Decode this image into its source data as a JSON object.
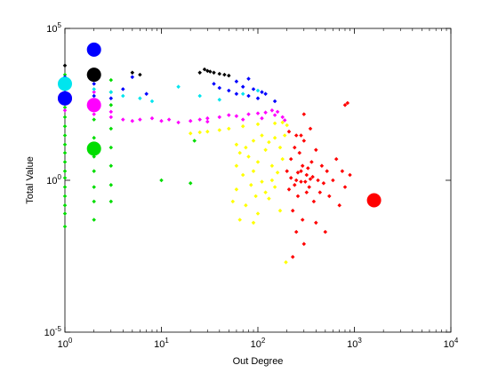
{
  "chart_data": {
    "type": "scatter",
    "title": "",
    "xlabel": "Out Degree",
    "ylabel": "Total Value",
    "xscale": "log",
    "yscale": "log",
    "xlim": [
      1,
      10000
    ],
    "ylim": [
      1e-05,
      100000
    ],
    "grid": false,
    "legend": "none",
    "x_ticks": [
      {
        "value": 1,
        "base": "10",
        "exp": "0"
      },
      {
        "value": 10,
        "base": "10",
        "exp": "1"
      },
      {
        "value": 100,
        "base": "10",
        "exp": "2"
      },
      {
        "value": 1000,
        "base": "10",
        "exp": "3"
      },
      {
        "value": 10000,
        "base": "10",
        "exp": "4"
      }
    ],
    "y_ticks": [
      {
        "value": 1e-05,
        "base": "10",
        "exp": "-5"
      },
      {
        "value": 1,
        "base": "10",
        "exp": "0"
      },
      {
        "value": 100000,
        "base": "10",
        "exp": "5"
      }
    ],
    "series": [
      {
        "color": "#00dd00",
        "points": [
          [
            1,
            0.03
          ],
          [
            1,
            0.08
          ],
          [
            1,
            0.15
          ],
          [
            1,
            0.3
          ],
          [
            1,
            0.6
          ],
          [
            1,
            1.2
          ],
          [
            1,
            2
          ],
          [
            1,
            4
          ],
          [
            1,
            8
          ],
          [
            1,
            15
          ],
          [
            1,
            30
          ],
          [
            1,
            60
          ],
          [
            1,
            120
          ],
          [
            1,
            250
          ],
          [
            1,
            500
          ],
          [
            1,
            1000
          ],
          [
            1,
            1500
          ],
          [
            1,
            3000
          ],
          [
            2,
            0.05
          ],
          [
            2,
            0.2
          ],
          [
            2,
            0.6
          ],
          [
            2,
            2
          ],
          [
            2,
            6
          ],
          [
            2,
            25
          ],
          [
            2,
            100
          ],
          [
            2,
            400
          ],
          [
            3,
            0.2
          ],
          [
            3,
            0.7
          ],
          [
            3,
            3
          ],
          [
            3,
            12
          ],
          [
            3,
            50
          ],
          [
            3,
            300
          ],
          [
            3,
            800
          ],
          [
            3,
            2000
          ],
          [
            10,
            1
          ],
          [
            20,
            0.8
          ],
          [
            22,
            20
          ]
        ],
        "large_markers": [
          [
            2,
            11
          ]
        ]
      },
      {
        "color": "#ffff00",
        "points": [
          [
            55,
            0.2
          ],
          [
            60,
            3
          ],
          [
            60,
            0.5
          ],
          [
            65,
            8
          ],
          [
            70,
            1.5
          ],
          [
            75,
            0.15
          ],
          [
            80,
            6
          ],
          [
            85,
            0.7
          ],
          [
            90,
            2
          ],
          [
            95,
            0.3
          ],
          [
            100,
            4
          ],
          [
            110,
            0.9
          ],
          [
            120,
            10
          ],
          [
            130,
            0.25
          ],
          [
            140,
            3
          ],
          [
            150,
            0.6
          ],
          [
            160,
            1.8
          ],
          [
            170,
            0.1
          ],
          [
            180,
            5
          ],
          [
            195,
            0.002
          ],
          [
            60,
            15
          ],
          [
            75,
            12
          ],
          [
            90,
            20
          ],
          [
            110,
            30
          ],
          [
            130,
            18
          ],
          [
            150,
            25
          ],
          [
            20,
            35
          ],
          [
            25,
            38
          ],
          [
            30,
            40
          ],
          [
            40,
            45
          ],
          [
            50,
            50
          ],
          [
            70,
            60
          ],
          [
            100,
            70
          ],
          [
            150,
            75
          ],
          [
            180,
            80
          ],
          [
            200,
            65
          ],
          [
            190,
            30
          ],
          [
            170,
            12
          ],
          [
            140,
            1
          ],
          [
            120,
            0.4
          ],
          [
            100,
            0.08
          ],
          [
            65,
            0.05
          ],
          [
            90,
            0.04
          ]
        ],
        "large_markers": []
      },
      {
        "color": "#ff00ff",
        "points": [
          [
            1,
            200
          ],
          [
            1,
            500
          ],
          [
            2,
            150
          ],
          [
            2,
            300
          ],
          [
            3,
            120
          ],
          [
            4,
            100
          ],
          [
            5,
            90
          ],
          [
            6,
            100
          ],
          [
            8,
            110
          ],
          [
            10,
            90
          ],
          [
            12,
            100
          ],
          [
            15,
            80
          ],
          [
            20,
            90
          ],
          [
            25,
            100
          ],
          [
            30,
            110
          ],
          [
            40,
            120
          ],
          [
            50,
            140
          ],
          [
            60,
            130
          ],
          [
            80,
            150
          ],
          [
            100,
            160
          ],
          [
            120,
            170
          ],
          [
            140,
            200
          ],
          [
            160,
            180
          ],
          [
            180,
            120
          ],
          [
            190,
            95
          ],
          [
            30,
            85
          ],
          [
            70,
            100
          ],
          [
            110,
            110
          ],
          [
            150,
            140
          ],
          [
            3,
            180
          ],
          [
            2,
            800
          ],
          [
            1,
            1000
          ]
        ],
        "large_markers": [
          [
            1,
            500
          ],
          [
            2,
            300
          ]
        ]
      },
      {
        "color": "#ff0000",
        "points": [
          [
            200,
            2
          ],
          [
            210,
            0.5
          ],
          [
            220,
            5
          ],
          [
            230,
            0.1
          ],
          [
            240,
            12
          ],
          [
            250,
            1
          ],
          [
            260,
            0.3
          ],
          [
            270,
            8
          ],
          [
            280,
            2
          ],
          [
            290,
            0.05
          ],
          [
            300,
            20
          ],
          [
            320,
            1.5
          ],
          [
            340,
            0.6
          ],
          [
            360,
            4
          ],
          [
            380,
            0.2
          ],
          [
            400,
            10
          ],
          [
            420,
            1
          ],
          [
            440,
            0.4
          ],
          [
            460,
            3
          ],
          [
            480,
            0.8
          ],
          [
            500,
            0.02
          ],
          [
            520,
            2
          ],
          [
            550,
            0.3
          ],
          [
            600,
            1
          ],
          [
            650,
            5
          ],
          [
            700,
            0.15
          ],
          [
            750,
            2
          ],
          [
            800,
            0.6
          ],
          [
            900,
            1.5
          ],
          [
            210,
            40
          ],
          [
            250,
            30
          ],
          [
            280,
            30
          ],
          [
            300,
            150
          ],
          [
            350,
            50
          ],
          [
            800,
            300
          ],
          [
            850,
            350
          ],
          [
            230,
            0.003
          ],
          [
            300,
            0.008
          ],
          [
            250,
            0.02
          ],
          [
            400,
            0.04
          ],
          [
            220,
            1.2
          ],
          [
            260,
            1.8
          ],
          [
            310,
            0.9
          ],
          [
            330,
            2.5
          ],
          [
            370,
            1.3
          ],
          [
            240,
            0.7
          ],
          [
            280,
            0.9
          ],
          [
            350,
            1.1
          ],
          [
            290,
            3
          ],
          [
            320,
            0.4
          ]
        ],
        "large_markers": [
          [
            1600,
            0.22
          ]
        ]
      },
      {
        "color": "#00e5ee",
        "points": [
          [
            1,
            1000
          ],
          [
            1,
            2000
          ],
          [
            2,
            1000
          ],
          [
            3,
            800
          ],
          [
            4,
            600
          ],
          [
            6,
            500
          ],
          [
            8,
            400
          ],
          [
            15,
            1200
          ],
          [
            25,
            600
          ],
          [
            40,
            450
          ],
          [
            70,
            700
          ],
          [
            100,
            900
          ]
        ],
        "large_markers": [
          [
            1,
            1500
          ]
        ]
      },
      {
        "color": "#0000ff",
        "points": [
          [
            1,
            2500
          ],
          [
            1,
            800
          ],
          [
            2,
            600
          ],
          [
            2,
            1500
          ],
          [
            3,
            500
          ],
          [
            4,
            1000
          ],
          [
            5,
            2500
          ],
          [
            7,
            700
          ],
          [
            35,
            1500
          ],
          [
            40,
            1100
          ],
          [
            50,
            900
          ],
          [
            60,
            700
          ],
          [
            70,
            1200
          ],
          [
            80,
            600
          ],
          [
            90,
            1000
          ],
          [
            100,
            500
          ],
          [
            110,
            800
          ],
          [
            120,
            700
          ],
          [
            150,
            400
          ],
          [
            60,
            1800
          ],
          [
            80,
            2200
          ]
        ],
        "large_markers": [
          [
            1,
            500
          ],
          [
            2,
            20000
          ]
        ]
      },
      {
        "color": "#000000",
        "points": [
          [
            1,
            6000
          ],
          [
            2,
            3000
          ],
          [
            5,
            3500
          ],
          [
            6,
            3000
          ],
          [
            25,
            3500
          ],
          [
            28,
            4500
          ],
          [
            30,
            4000
          ],
          [
            32,
            3800
          ],
          [
            35,
            3500
          ],
          [
            40,
            3200
          ],
          [
            45,
            3000
          ],
          [
            50,
            2800
          ]
        ],
        "large_markers": [
          [
            2,
            3000
          ]
        ]
      }
    ]
  }
}
